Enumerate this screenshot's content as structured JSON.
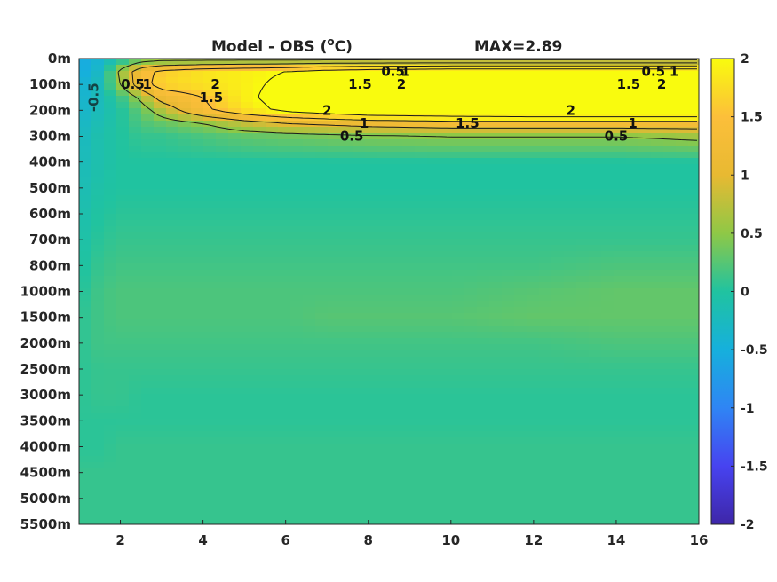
{
  "chart_data": {
    "type": "heatmap",
    "title": "Model - OBS (°C)",
    "title_parts": {
      "prefix": "Model - OBS (",
      "superscript": "o",
      "suffix": "C)"
    },
    "annotation": "MAX=2.89",
    "xlabel": "",
    "ylabel": "",
    "xlim": [
      1,
      16
    ],
    "x_ticks": [
      2,
      4,
      6,
      8,
      10,
      12,
      14,
      16
    ],
    "y_tick_labels": [
      "0m",
      "100m",
      "200m",
      "300m",
      "400m",
      "500m",
      "600m",
      "700m",
      "800m",
      "1000m",
      "1500m",
      "2000m",
      "2500m",
      "3000m",
      "3500m",
      "4000m",
      "4500m",
      "5000m",
      "5500m"
    ],
    "colorbar": {
      "range": [
        -2,
        2
      ],
      "ticks": [
        "2",
        "1.5",
        "1",
        "0.5",
        "0",
        "-0.5",
        "-1",
        "-1.5",
        "-2"
      ],
      "colormap": "parula",
      "colors": [
        "#3e26a8",
        "#4743f0",
        "#2f85f4",
        "#16b0dc",
        "#20c3a0",
        "#8fc846",
        "#e8b932",
        "#fcbf3a",
        "#f9fb0e"
      ]
    },
    "x": [
      1,
      1.5,
      2,
      2.5,
      3,
      4,
      5,
      6,
      7,
      8,
      10,
      12,
      14,
      16
    ],
    "depth_levels": [
      "0m",
      "50m",
      "100m",
      "150m",
      "200m",
      "250m",
      "300m",
      "400m",
      "500m",
      "600m",
      "700m",
      "800m",
      "1000m",
      "1500m",
      "2000m",
      "2500m",
      "3000m",
      "3500m",
      "4000m",
      "4500m",
      "5000m",
      "5500m"
    ],
    "values": [
      [
        -0.6,
        -0.4,
        -0.1,
        0.2,
        0.3,
        0.3,
        0.3,
        0.3,
        0.3,
        0.3,
        0.3,
        0.3,
        0.3,
        0.3
      ],
      [
        -0.6,
        -0.3,
        0.6,
        1.3,
        1.6,
        1.8,
        1.9,
        2.0,
        2.2,
        2.3,
        2.4,
        2.4,
        2.4,
        2.4
      ],
      [
        -0.5,
        -0.2,
        0.5,
        1.3,
        1.7,
        1.8,
        1.9,
        2.1,
        2.3,
        2.5,
        2.6,
        2.6,
        2.6,
        2.6
      ],
      [
        -0.45,
        -0.2,
        0.1,
        0.6,
        1.2,
        1.5,
        1.9,
        2.2,
        2.4,
        2.6,
        2.7,
        2.8,
        2.8,
        2.8
      ],
      [
        -0.4,
        -0.2,
        0.0,
        0.3,
        0.7,
        1.4,
        1.8,
        2.1,
        2.3,
        2.5,
        2.6,
        2.7,
        2.7,
        2.7
      ],
      [
        -0.35,
        -0.15,
        0.0,
        0.2,
        0.3,
        0.5,
        0.8,
        1.0,
        1.1,
        1.2,
        1.3,
        1.3,
        1.3,
        1.3
      ],
      [
        -0.3,
        -0.1,
        0.0,
        0.1,
        0.1,
        0.2,
        0.3,
        0.35,
        0.4,
        0.45,
        0.5,
        0.5,
        0.5,
        0.6
      ],
      [
        -0.25,
        -0.1,
        0.0,
        0.0,
        0.0,
        0.0,
        0.0,
        0.0,
        0.0,
        0.0,
        0.0,
        0.0,
        0.0,
        0.0
      ],
      [
        -0.2,
        -0.05,
        0.0,
        0.0,
        0.0,
        0.0,
        0.0,
        0.0,
        0.0,
        0.0,
        0.0,
        0.0,
        0.0,
        0.0
      ],
      [
        -0.15,
        0.0,
        0.05,
        0.05,
        0.05,
        0.05,
        0.05,
        0.05,
        0.05,
        0.05,
        0.05,
        0.05,
        0.05,
        0.05
      ],
      [
        -0.1,
        0.05,
        0.1,
        0.1,
        0.1,
        0.1,
        0.1,
        0.1,
        0.1,
        0.1,
        0.1,
        0.1,
        0.1,
        0.1
      ],
      [
        -0.05,
        0.1,
        0.15,
        0.15,
        0.15,
        0.15,
        0.15,
        0.15,
        0.15,
        0.15,
        0.15,
        0.15,
        0.2,
        0.2
      ],
      [
        0.0,
        0.15,
        0.2,
        0.2,
        0.2,
        0.2,
        0.2,
        0.2,
        0.2,
        0.2,
        0.2,
        0.25,
        0.3,
        0.3
      ],
      [
        0.05,
        0.15,
        0.2,
        0.2,
        0.2,
        0.2,
        0.2,
        0.2,
        0.25,
        0.25,
        0.25,
        0.3,
        0.3,
        0.3
      ],
      [
        0.05,
        0.15,
        0.15,
        0.15,
        0.15,
        0.15,
        0.15,
        0.15,
        0.15,
        0.15,
        0.15,
        0.15,
        0.2,
        0.2
      ],
      [
        0.05,
        0.1,
        0.1,
        0.1,
        0.1,
        0.1,
        0.1,
        0.1,
        0.1,
        0.1,
        0.1,
        0.1,
        0.1,
        0.1
      ],
      [
        0.05,
        0.1,
        0.1,
        0.05,
        0.05,
        0.05,
        0.05,
        0.05,
        0.05,
        0.05,
        0.05,
        0.05,
        0.05,
        0.05
      ],
      [
        0.05,
        0.05,
        0.05,
        0.05,
        0.05,
        0.05,
        0.05,
        0.05,
        0.05,
        0.05,
        0.05,
        0.05,
        0.05,
        0.05
      ],
      [
        0.05,
        0.05,
        0.1,
        0.1,
        0.1,
        0.1,
        0.1,
        0.1,
        0.1,
        0.1,
        0.1,
        0.1,
        0.1,
        0.1
      ],
      [
        0.1,
        0.1,
        0.1,
        0.1,
        0.1,
        0.1,
        0.1,
        0.1,
        0.1,
        0.1,
        0.1,
        0.1,
        0.1,
        0.1
      ],
      [
        0.1,
        0.1,
        0.1,
        0.1,
        0.1,
        0.1,
        0.1,
        0.1,
        0.1,
        0.1,
        0.1,
        0.1,
        0.1,
        0.1
      ],
      [
        0.1,
        0.1,
        0.1,
        0.1,
        0.1,
        0.1,
        0.1,
        0.1,
        0.1,
        0.1,
        0.1,
        0.1,
        0.1,
        0.1
      ]
    ],
    "contour_levels": [
      0.5,
      1,
      1.5,
      2
    ],
    "contour_labels": [
      {
        "text": "0.5",
        "x": 2.3,
        "depth": "100m"
      },
      {
        "text": "1",
        "x": 2.65,
        "depth": "100m"
      },
      {
        "text": "2",
        "x": 4.3,
        "depth": "100m"
      },
      {
        "text": "1.5",
        "x": 4.2,
        "depth": "150m"
      },
      {
        "text": "0.5",
        "x": 8.6,
        "depth": "50m"
      },
      {
        "text": "1",
        "x": 8.9,
        "depth": "50m"
      },
      {
        "text": "1.5",
        "x": 7.8,
        "depth": "100m"
      },
      {
        "text": "2",
        "x": 8.8,
        "depth": "100m"
      },
      {
        "text": "2",
        "x": 7.0,
        "depth": "200m"
      },
      {
        "text": "0.5",
        "x": 7.6,
        "depth": "300m"
      },
      {
        "text": "1",
        "x": 7.9,
        "depth": "250m"
      },
      {
        "text": "1.5",
        "x": 10.4,
        "depth": "250m"
      },
      {
        "text": "2",
        "x": 12.9,
        "depth": "200m"
      },
      {
        "text": "0.5",
        "x": 14.0,
        "depth": "300m"
      },
      {
        "text": "1",
        "x": 14.4,
        "depth": "250m"
      },
      {
        "text": "0.5",
        "x": 14.9,
        "depth": "50m"
      },
      {
        "text": "1",
        "x": 15.4,
        "depth": "50m"
      },
      {
        "text": "1.5",
        "x": 14.3,
        "depth": "100m"
      },
      {
        "text": "2",
        "x": 15.1,
        "depth": "100m"
      },
      {
        "text": "-0.5",
        "x": 1.35,
        "depth": "150m"
      }
    ]
  }
}
